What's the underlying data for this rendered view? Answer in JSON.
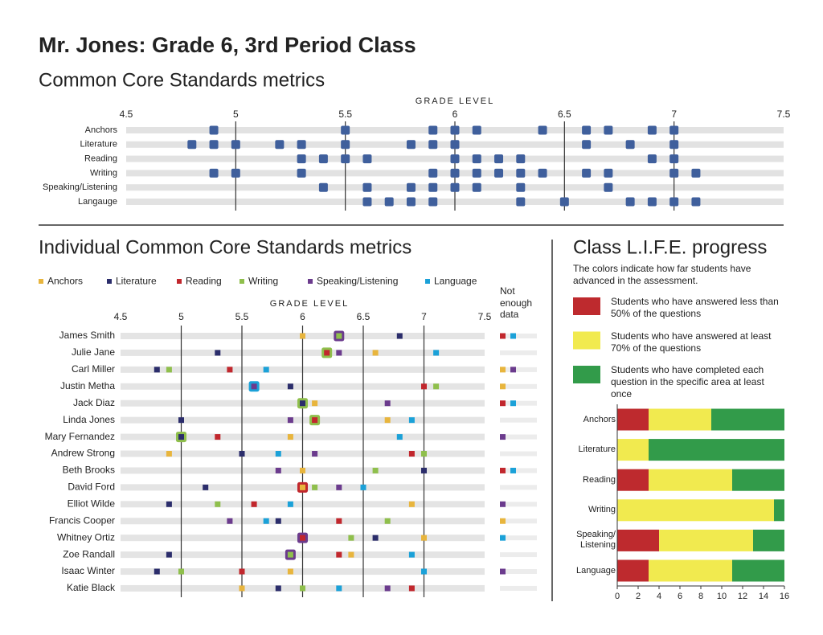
{
  "header": {
    "title": "Mr. Jones: Grade 6, 3rd Period Class"
  },
  "chart_data": [
    {
      "type": "strip",
      "title": "Common Core Standards metrics",
      "x_label": "GRADE LEVEL",
      "xlim": [
        4.5,
        7.5
      ],
      "xticks": [
        4.5,
        5,
        5.5,
        6,
        6.5,
        7,
        7.5
      ],
      "grid": true,
      "color": "#3f5f9c",
      "categories": [
        "Anchors",
        "Literature",
        "Reading",
        "Writing",
        "Speaking/Listening",
        "Langauge"
      ],
      "values": [
        [
          4.9,
          5.5,
          5.9,
          6.0,
          6.1,
          6.4,
          6.6,
          6.7,
          6.9,
          7.0
        ],
        [
          4.8,
          4.9,
          5.0,
          5.2,
          5.3,
          5.5,
          5.8,
          5.9,
          6.0,
          6.6,
          6.8,
          7.0
        ],
        [
          5.3,
          5.4,
          5.5,
          5.6,
          6.0,
          6.1,
          6.2,
          6.3,
          6.9,
          7.0
        ],
        [
          4.9,
          5.0,
          5.3,
          5.9,
          6.0,
          6.1,
          6.2,
          6.3,
          6.4,
          6.6,
          6.7,
          7.0,
          7.1
        ],
        [
          5.4,
          5.6,
          5.8,
          5.9,
          6.0,
          6.1,
          6.3,
          6.7
        ],
        [
          5.6,
          5.7,
          5.8,
          5.9,
          6.3,
          6.5,
          6.8,
          6.9,
          7.0,
          7.1
        ]
      ]
    },
    {
      "type": "dot-matrix",
      "title": "Individual Common Core Standards metrics",
      "x_label": "GRADE LEVEL",
      "missing_label": "Not enough data",
      "xlim": [
        4.5,
        7.5
      ],
      "xticks": [
        4.5,
        5,
        5.5,
        6,
        6.5,
        7,
        7.5
      ],
      "grid": true,
      "categories": [
        "James Smith",
        "Julie Jane",
        "Carl Miller",
        "Justin Metha",
        "Jack Diaz",
        "Linda Jones",
        "Mary Fernandez",
        "Andrew Strong",
        "Beth Brooks",
        "David Ford",
        "Elliot Wilde",
        "Francis Cooper",
        "Whitney Ortiz",
        "Zoe Randall",
        "Isaac Winter",
        "Katie Black"
      ],
      "series": [
        {
          "name": "Anchors",
          "color": "#e8b53d",
          "values": [
            6.0,
            6.6,
            null,
            null,
            6.1,
            6.7,
            5.9,
            4.9,
            6.0,
            6.0,
            6.9,
            null,
            7.0,
            6.4,
            5.9,
            5.5
          ]
        },
        {
          "name": "Literature",
          "color": "#2b2d6b",
          "values": [
            6.8,
            5.3,
            4.8,
            5.9,
            6.0,
            5.0,
            5.0,
            5.5,
            7.0,
            5.2,
            4.9,
            5.8,
            6.6,
            4.9,
            4.8,
            5.8
          ]
        },
        {
          "name": "Reading",
          "color": "#c1272d",
          "values": [
            null,
            6.2,
            5.4,
            7.0,
            null,
            6.1,
            5.3,
            6.9,
            null,
            6.0,
            5.6,
            6.3,
            6.0,
            6.3,
            5.5,
            6.9
          ]
        },
        {
          "name": "Writing",
          "color": "#8fbf4c",
          "values": [
            6.3,
            6.2,
            4.9,
            7.1,
            6.0,
            6.1,
            5.0,
            7.0,
            6.6,
            6.1,
            5.3,
            6.7,
            6.4,
            5.9,
            5.0,
            6.0
          ]
        },
        {
          "name": "Speaking/Listening",
          "color": "#6b3b8d",
          "values": [
            6.3,
            6.3,
            null,
            5.6,
            6.7,
            5.9,
            null,
            6.1,
            5.8,
            6.3,
            null,
            5.4,
            6.0,
            5.9,
            null,
            6.7
          ]
        },
        {
          "name": "Language",
          "color": "#1ba1d8",
          "values": [
            null,
            7.1,
            5.7,
            5.6,
            null,
            6.9,
            6.8,
            5.8,
            null,
            6.5,
            5.9,
            5.7,
            null,
            6.9,
            7.0,
            6.3
          ]
        }
      ]
    },
    {
      "type": "bar",
      "orientation": "horizontal",
      "stacked": true,
      "title": "Class L.I.F.E. progress",
      "description": "The colors indicate how far students have advanced in the assessment.",
      "xlim": [
        0,
        16
      ],
      "xticks": [
        0,
        2,
        4,
        6,
        8,
        10,
        12,
        14,
        16
      ],
      "categories": [
        "Anchors",
        "Literature",
        "Reading",
        "Writing",
        "Speaking/ Listening",
        "Language"
      ],
      "series": [
        {
          "name": "Students who have answered less than 50% of the questions",
          "color": "#be2a2e",
          "values": [
            3,
            0,
            3,
            0,
            4,
            3
          ]
        },
        {
          "name": "Students who have answered at least 70% of the questions",
          "color": "#f1ea4f",
          "values": [
            6,
            3,
            8,
            15,
            9,
            8
          ]
        },
        {
          "name": "Students who have completed each question in the specific area at least once",
          "color": "#329b4a",
          "values": [
            7,
            13,
            5,
            1,
            3,
            5
          ]
        }
      ]
    }
  ]
}
